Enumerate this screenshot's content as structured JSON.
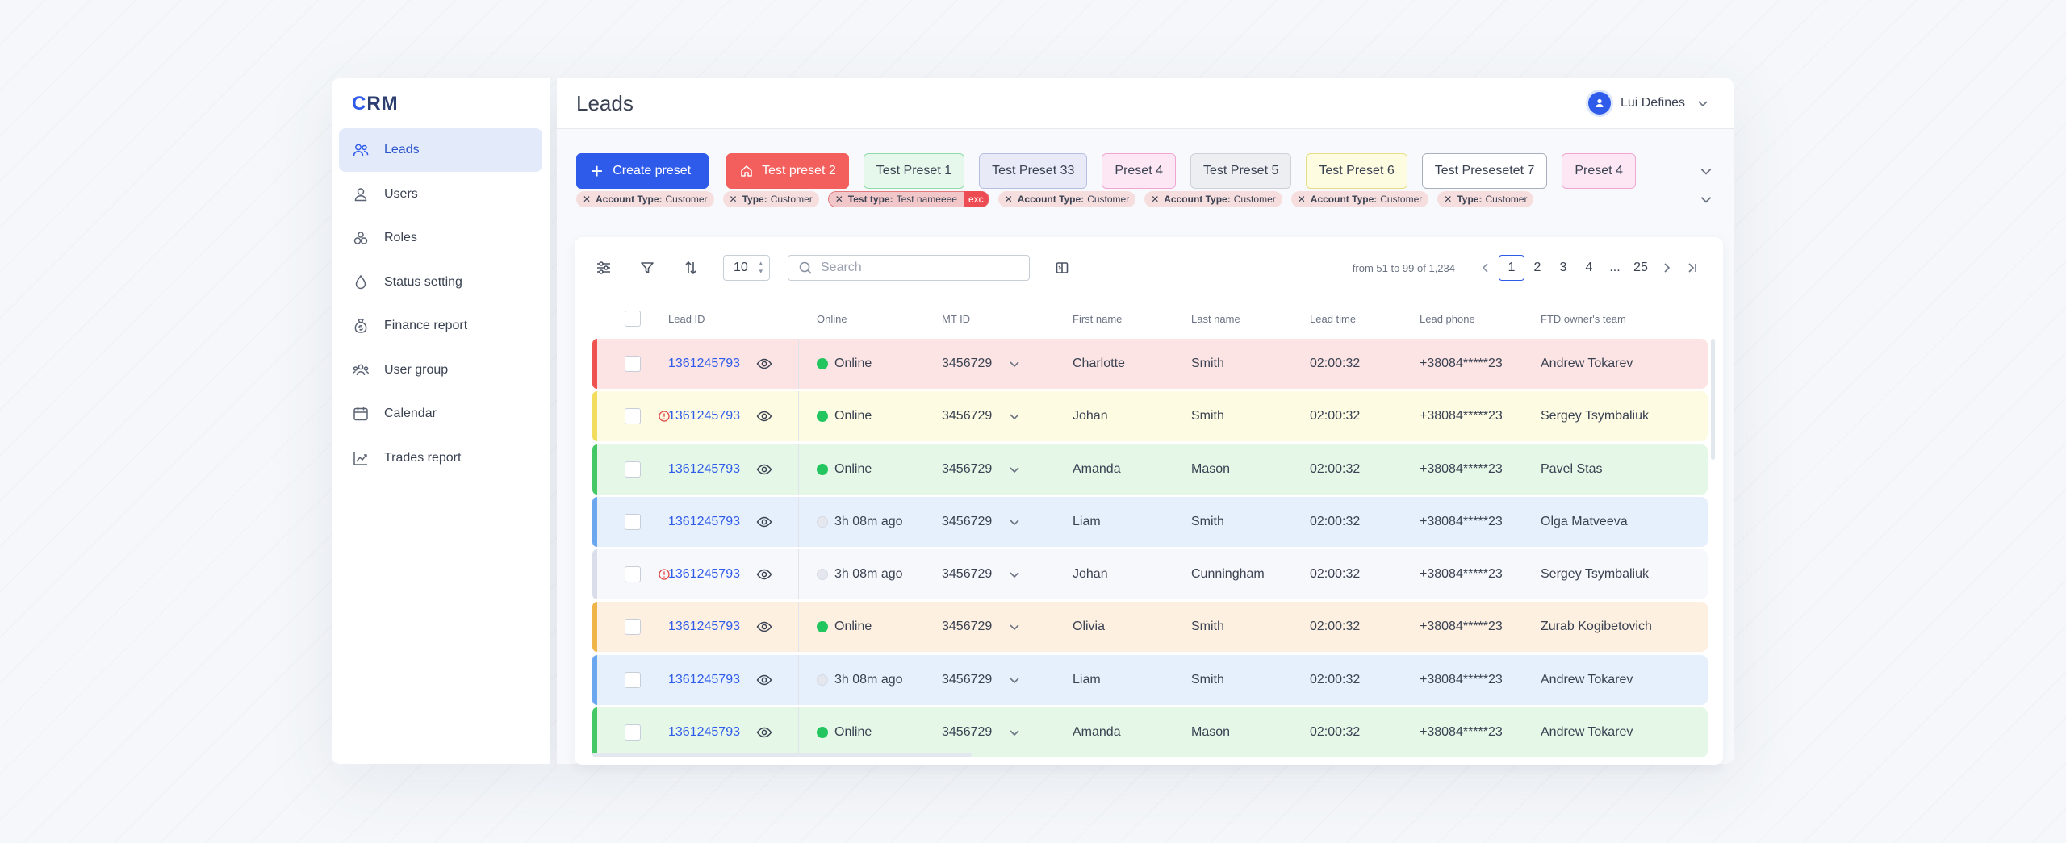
{
  "logo": {
    "c": "C",
    "rest": "RM"
  },
  "sidebar": {
    "items": [
      {
        "label": "Leads",
        "icon": "users-icon",
        "active": true
      },
      {
        "label": "Users",
        "icon": "user-icon"
      },
      {
        "label": "Roles",
        "icon": "roles-icon"
      },
      {
        "label": "Status setting",
        "icon": "drop-icon"
      },
      {
        "label": "Finance report",
        "icon": "money-bag-icon"
      },
      {
        "label": "User group",
        "icon": "user-group-icon"
      },
      {
        "label": "Calendar",
        "icon": "calendar-icon"
      },
      {
        "label": "Trades report",
        "icon": "chart-line-icon"
      }
    ]
  },
  "header": {
    "title": "Leads",
    "user_name": "Lui Defines"
  },
  "presets": {
    "create_label": "Create preset",
    "items": [
      "Test preset 2",
      "Test Preset 1",
      "Test Preset 33",
      "Preset 4",
      "Test Preset 5",
      "Test Preset 6",
      "Test Presesetet 7",
      "Preset 4"
    ]
  },
  "filters": [
    {
      "key": "Account Type:",
      "value": "Customer"
    },
    {
      "key": "Type:",
      "value": "Customer"
    },
    {
      "key": "Test type:",
      "value": "Test nameeee",
      "badge": "exc"
    },
    {
      "key": "Account Type:",
      "value": "Customer"
    },
    {
      "key": "Account Type:",
      "value": "Customer"
    },
    {
      "key": "Account Type:",
      "value": "Customer"
    },
    {
      "key": "Type:",
      "value": "Customer"
    }
  ],
  "toolbar": {
    "per_page": "10",
    "search_placeholder": "Search",
    "range": "from 51 to 99 of 1,234",
    "pages": [
      "1",
      "2",
      "3",
      "4",
      "...",
      "25"
    ]
  },
  "table": {
    "columns": [
      "Lead ID",
      "Online",
      "MT ID",
      "First name",
      "Last name",
      "Lead time",
      "Lead phone",
      "FTD owner's team"
    ],
    "rows": [
      {
        "id": "1361245793",
        "online": "Online",
        "status": "on",
        "mt": "3456729",
        "first": "Charlotte",
        "last": "Smith",
        "time": "02:00:32",
        "phone": "+38084*****23",
        "team": "Andrew Tokarev",
        "bg": "#fde4e4",
        "bar": "#ef5350",
        "warn": false
      },
      {
        "id": "1361245793",
        "online": "Online",
        "status": "on",
        "mt": "3456729",
        "first": "Johan",
        "last": "Smith",
        "time": "02:00:32",
        "phone": "+38084*****23",
        "team": "Sergey Tsymbaliuk",
        "bg": "#fdfbe2",
        "bar": "#f2dc5d",
        "warn": true
      },
      {
        "id": "1361245793",
        "online": "Online",
        "status": "on",
        "mt": "3456729",
        "first": "Amanda",
        "last": "Mason",
        "time": "02:00:32",
        "phone": "+38084*****23",
        "team": "Pavel Stas",
        "bg": "#e5f7e7",
        "bar": "#44c765",
        "warn": false
      },
      {
        "id": "1361245793",
        "online": "3h 08m ago",
        "status": "off",
        "mt": "3456729",
        "first": "Liam",
        "last": "Smith",
        "time": "02:00:32",
        "phone": "+38084*****23",
        "team": "Olga Matveeva",
        "bg": "#e6f0fc",
        "bar": "#6aa7ee",
        "warn": false
      },
      {
        "id": "1361245793",
        "online": "3h 08m ago",
        "status": "off",
        "mt": "3456729",
        "first": "Johan",
        "last": "Cunningham",
        "time": "02:00:32",
        "phone": "+38084*****23",
        "team": "Sergey Tsymbaliuk",
        "bg": "#f7f8fb",
        "bar": "#d9deea",
        "warn": true
      },
      {
        "id": "1361245793",
        "online": "Online",
        "status": "on",
        "mt": "3456729",
        "first": "Olivia",
        "last": "Smith",
        "time": "02:00:32",
        "phone": "+38084*****23",
        "team": "Zurab Kogibetovich",
        "bg": "#fdf0e1",
        "bar": "#f0b549",
        "warn": false
      },
      {
        "id": "1361245793",
        "online": "3h 08m ago",
        "status": "off",
        "mt": "3456729",
        "first": "Liam",
        "last": "Smith",
        "time": "02:00:32",
        "phone": "+38084*****23",
        "team": "Andrew Tokarev",
        "bg": "#e6f0fc",
        "bar": "#6aa7ee",
        "warn": false
      },
      {
        "id": "1361245793",
        "online": "Online",
        "status": "on",
        "mt": "3456729",
        "first": "Amanda",
        "last": "Mason",
        "time": "02:00:32",
        "phone": "+38084*****23",
        "team": "Andrew Tokarev",
        "bg": "#e5f7e7",
        "bar": "#44c765",
        "warn": false
      }
    ]
  },
  "colors": {
    "accent": "#2f5bea",
    "online": "#22c55e",
    "danger": "#f25f5c"
  }
}
